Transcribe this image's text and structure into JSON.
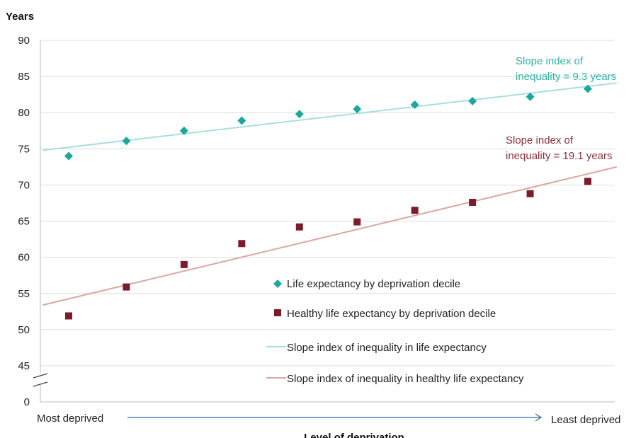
{
  "chart_data": {
    "type": "scatter",
    "ylabel": "Years",
    "xlabel": "Level of deprivation",
    "x_start_label": "Most deprived",
    "x_end_label": "Least deprived",
    "y_ticks": [
      "90",
      "85",
      "80",
      "75",
      "70",
      "65",
      "60",
      "55",
      "50",
      "45",
      "0"
    ],
    "ylim": [
      45,
      90
    ],
    "axis_break": true,
    "deciles": [
      1,
      2,
      3,
      4,
      5,
      6,
      7,
      8,
      9,
      10
    ],
    "grid": true,
    "series": [
      {
        "name": "Life expectancy by deprivation decile",
        "marker": "diamond",
        "color": "#1aa89a",
        "values": [
          74.0,
          76.1,
          77.5,
          78.9,
          79.8,
          80.5,
          81.1,
          81.6,
          82.2,
          83.3
        ]
      },
      {
        "name": "Healthy life expectancy by deprivation decile",
        "marker": "square",
        "color": "#7b1c2c",
        "values": [
          51.9,
          55.9,
          59.0,
          61.9,
          64.2,
          64.9,
          66.5,
          67.6,
          68.8,
          70.5
        ]
      }
    ],
    "trendlines": [
      {
        "name": "Slope index of inequality in life expectancy",
        "color": "#a9dede",
        "from": [
          0.55,
          74.8
        ],
        "to": [
          10.5,
          84.1
        ],
        "annotation": [
          "Slope index of",
          "inequality = 9.3 years"
        ],
        "annotation_color": "#2fb3a7"
      },
      {
        "name": "Slope index of inequality in healthy life expectancy",
        "color": "#dba7a2",
        "from": [
          0.55,
          53.4
        ],
        "to": [
          10.5,
          72.5
        ],
        "annotation": [
          "Slope index of",
          "inequality = 19.1 years"
        ],
        "annotation_color": "#8a2f3c"
      }
    ]
  }
}
